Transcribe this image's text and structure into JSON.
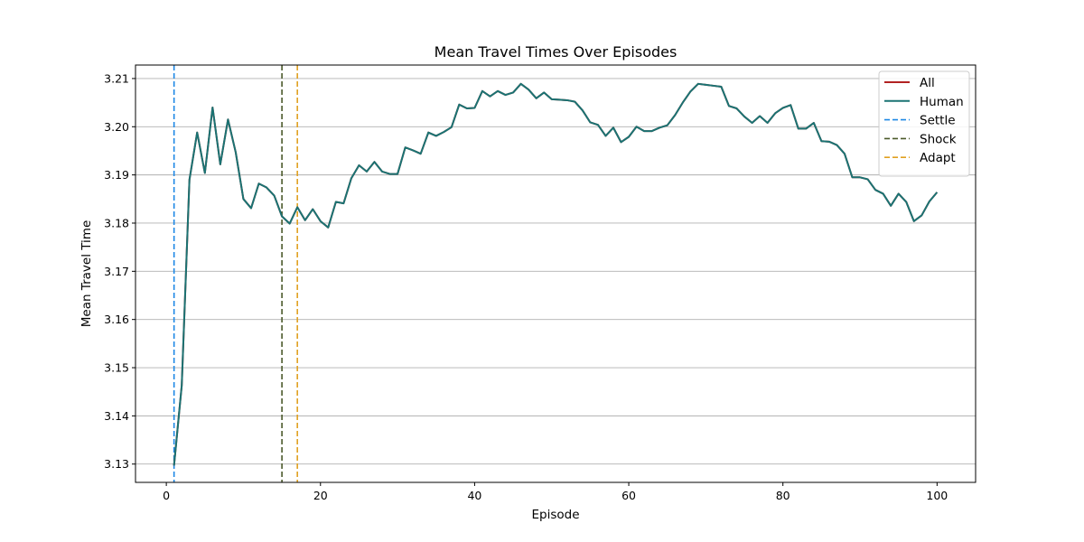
{
  "chart_data": {
    "type": "line",
    "title": "Mean Travel Times Over Episodes",
    "xlabel": "Episode",
    "ylabel": "Mean Travel Time",
    "xlim": [
      -4,
      105
    ],
    "ylim": [
      3.1262,
      3.2128
    ],
    "xticks": [
      0,
      20,
      40,
      60,
      80,
      100
    ],
    "yticks": [
      3.13,
      3.14,
      3.15,
      3.16,
      3.17,
      3.18,
      3.19,
      3.2,
      3.21
    ],
    "ytick_labels": [
      "3.13",
      "3.14",
      "3.15",
      "3.16",
      "3.17",
      "3.18",
      "3.19",
      "3.20",
      "3.21"
    ],
    "grid": "y",
    "legend_position": "top-right",
    "x": [
      1,
      2,
      3,
      4,
      5,
      6,
      7,
      8,
      9,
      10,
      11,
      12,
      13,
      14,
      15,
      16,
      17,
      18,
      19,
      20,
      21,
      22,
      23,
      24,
      25,
      26,
      27,
      28,
      29,
      30,
      31,
      32,
      33,
      34,
      35,
      36,
      37,
      38,
      39,
      40,
      41,
      42,
      43,
      44,
      45,
      46,
      47,
      48,
      49,
      50,
      51,
      52,
      53,
      54,
      55,
      56,
      57,
      58,
      59,
      60,
      61,
      62,
      63,
      64,
      65,
      66,
      67,
      68,
      69,
      70,
      71,
      72,
      73,
      74,
      75,
      76,
      77,
      78,
      79,
      80,
      81,
      82,
      83,
      84,
      85,
      86,
      87,
      88,
      89,
      90,
      91,
      92,
      93,
      94,
      95,
      96,
      97,
      98,
      99,
      100
    ],
    "series": [
      {
        "name": "All",
        "color": "#b22222",
        "style": "solid",
        "values": [
          3.1297,
          3.1463,
          3.189,
          3.1988,
          3.1904,
          3.204,
          3.1922,
          3.2015,
          3.1947,
          3.185,
          3.1831,
          3.1882,
          3.1874,
          3.1857,
          3.1814,
          3.1799,
          3.1833,
          3.1806,
          3.1829,
          3.1804,
          3.1791,
          3.1844,
          3.1841,
          3.1893,
          3.192,
          3.1907,
          3.1927,
          3.1907,
          3.1902,
          3.1902,
          3.1957,
          3.1951,
          3.1944,
          3.1988,
          3.1981,
          3.1989,
          3.1999,
          3.2046,
          3.2038,
          3.2039,
          3.2074,
          3.2063,
          3.2074,
          3.2066,
          3.2071,
          3.2089,
          3.2077,
          3.2059,
          3.2071,
          3.2057,
          3.2056,
          3.2055,
          3.2052,
          3.2034,
          3.2009,
          3.2004,
          3.1981,
          3.1998,
          3.1968,
          3.1979,
          3.2,
          3.1991,
          3.1991,
          3.1998,
          3.2003,
          3.2024,
          3.205,
          3.2073,
          3.2089,
          3.2087,
          3.2085,
          3.2083,
          3.2043,
          3.2038,
          3.2021,
          3.2008,
          3.2022,
          3.2008,
          3.2028,
          3.2039,
          3.2045,
          3.1996,
          3.1996,
          3.2008,
          3.197,
          3.1969,
          3.1962,
          3.1944,
          3.1895,
          3.1895,
          3.1891,
          3.1869,
          3.1861,
          3.1836,
          3.1861,
          3.1844,
          3.1804,
          3.1816,
          3.1845,
          3.1864
        ]
      },
      {
        "name": "Human",
        "color": "#1a7373",
        "style": "solid",
        "values": [
          3.1297,
          3.1463,
          3.189,
          3.1988,
          3.1904,
          3.204,
          3.1922,
          3.2015,
          3.1947,
          3.185,
          3.1831,
          3.1882,
          3.1874,
          3.1857,
          3.1814,
          3.1799,
          3.1833,
          3.1806,
          3.1829,
          3.1804,
          3.1791,
          3.1844,
          3.1841,
          3.1893,
          3.192,
          3.1907,
          3.1927,
          3.1907,
          3.1902,
          3.1902,
          3.1957,
          3.1951,
          3.1944,
          3.1988,
          3.1981,
          3.1989,
          3.1999,
          3.2046,
          3.2038,
          3.2039,
          3.2074,
          3.2063,
          3.2074,
          3.2066,
          3.2071,
          3.2089,
          3.2077,
          3.2059,
          3.2071,
          3.2057,
          3.2056,
          3.2055,
          3.2052,
          3.2034,
          3.2009,
          3.2004,
          3.1981,
          3.1998,
          3.1968,
          3.1979,
          3.2,
          3.1991,
          3.1991,
          3.1998,
          3.2003,
          3.2024,
          3.205,
          3.2073,
          3.2089,
          3.2087,
          3.2085,
          3.2083,
          3.2043,
          3.2038,
          3.2021,
          3.2008,
          3.2022,
          3.2008,
          3.2028,
          3.2039,
          3.2045,
          3.1996,
          3.1996,
          3.2008,
          3.197,
          3.1969,
          3.1962,
          3.1944,
          3.1895,
          3.1895,
          3.1891,
          3.1869,
          3.1861,
          3.1836,
          3.1861,
          3.1844,
          3.1804,
          3.1816,
          3.1845,
          3.1864
        ]
      }
    ],
    "vlines": [
      {
        "name": "Settle",
        "x": 1,
        "color": "#1e88e5",
        "style": "dashed"
      },
      {
        "name": "Shock",
        "x": 15,
        "color": "#4b5a2a",
        "style": "dashed"
      },
      {
        "name": "Adapt",
        "x": 17,
        "color": "#e0a020",
        "style": "dashed"
      }
    ]
  }
}
